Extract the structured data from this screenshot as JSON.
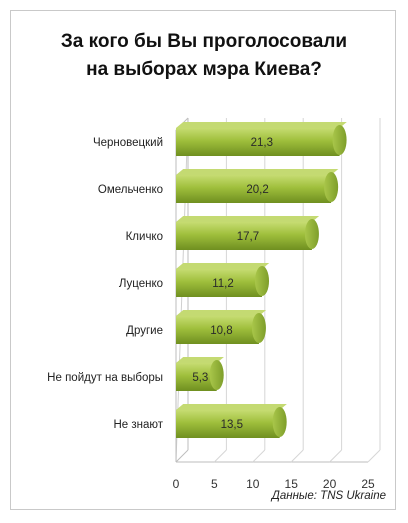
{
  "chart_data": {
    "type": "bar",
    "orientation": "horizontal",
    "title_lines": [
      "За кого бы Вы проголосовали",
      "на выборах мэра Киева?"
    ],
    "categories": [
      "Черновецкий",
      "Омельченко",
      "Кличко",
      "Луценко",
      "Другие",
      "Не пойдут на выборы",
      "Не знают"
    ],
    "values": [
      21.3,
      20.2,
      17.7,
      11.2,
      10.8,
      5.3,
      13.5
    ],
    "value_labels": [
      "21,3",
      "20,2",
      "17,7",
      "11,2",
      "10,8",
      "5,3",
      "13,5"
    ],
    "xticks": [
      0,
      5,
      10,
      15,
      20,
      25
    ],
    "xlim": [
      0,
      25
    ],
    "grid": true,
    "bar_color": "#9bbb3a",
    "source": "Данные: TNS Ukraine"
  }
}
